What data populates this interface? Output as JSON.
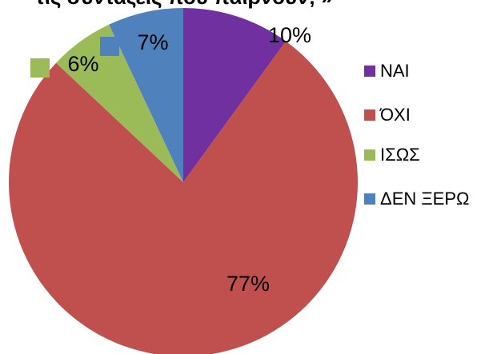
{
  "chart_data": {
    "type": "pie",
    "title": "τις συντάξεις που παίρνουν; »",
    "categories": [
      "ΝΑΙ",
      "ΌΧΙ",
      "ΙΣΩΣ",
      "ΔΕΝ ΞΕΡΩ"
    ],
    "values": [
      10,
      77,
      6,
      7
    ],
    "value_labels": [
      "10%",
      "77%",
      "6%",
      "7%"
    ],
    "colors": [
      "#7030a0",
      "#c0504d",
      "#9bbb59",
      "#4f81bd"
    ],
    "legend": "right"
  }
}
